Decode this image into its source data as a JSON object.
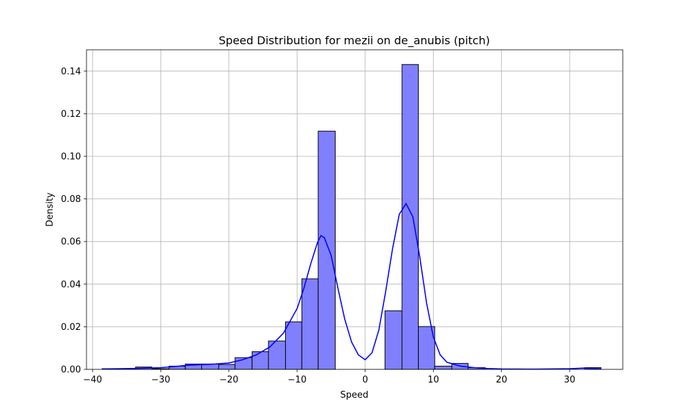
{
  "chart_data": {
    "type": "bar",
    "title": "Speed Distribution for mezii on de_anubis (pitch)",
    "xlabel": "Speed",
    "ylabel": "Density",
    "xlim": [
      -40.9,
      37.8
    ],
    "ylim": [
      0,
      0.15
    ],
    "grid": true,
    "x_ticks": [
      -40,
      -30,
      -20,
      -10,
      0,
      10,
      20,
      30
    ],
    "y_ticks": [
      0.0,
      0.02,
      0.04,
      0.06,
      0.08,
      0.1,
      0.12,
      0.14
    ],
    "x_tick_labels": [
      "−40",
      "−30",
      "−20",
      "−10",
      "0",
      "10",
      "20",
      "30"
    ],
    "y_tick_labels": [
      "0.00",
      "0.02",
      "0.04",
      "0.06",
      "0.08",
      "0.10",
      "0.12",
      "0.14"
    ],
    "bar_color": "#8080ff",
    "bar_edge_color": "#000000",
    "kde_color": "#0000ff",
    "bins": [
      {
        "x0": -38.6,
        "x1": -36.2,
        "value": 0.0003
      },
      {
        "x0": -36.2,
        "x1": -33.7,
        "value": 0.0003
      },
      {
        "x0": -33.7,
        "x1": -31.3,
        "value": 0.0011
      },
      {
        "x0": -31.3,
        "x1": -28.8,
        "value": 0.0003
      },
      {
        "x0": -28.8,
        "x1": -26.4,
        "value": 0.0015
      },
      {
        "x0": -26.4,
        "x1": -24.0,
        "value": 0.0025
      },
      {
        "x0": -24.0,
        "x1": -21.5,
        "value": 0.0025
      },
      {
        "x0": -21.5,
        "x1": -19.1,
        "value": 0.0023
      },
      {
        "x0": -19.1,
        "x1": -16.6,
        "value": 0.0055
      },
      {
        "x0": -16.6,
        "x1": -14.2,
        "value": 0.0083
      },
      {
        "x0": -14.2,
        "x1": -11.7,
        "value": 0.0133
      },
      {
        "x0": -11.7,
        "x1": -9.3,
        "value": 0.0223
      },
      {
        "x0": -9.3,
        "x1": -6.9,
        "value": 0.0425
      },
      {
        "x0": -6.9,
        "x1": -4.4,
        "value": 0.1118
      },
      {
        "x0": -4.4,
        "x1": -2.0,
        "value": 0.0
      },
      {
        "x0": -2.0,
        "x1": 0.5,
        "value": 0.0
      },
      {
        "x0": 0.5,
        "x1": 2.9,
        "value": 0.0
      },
      {
        "x0": 2.9,
        "x1": 5.4,
        "value": 0.0275
      },
      {
        "x0": 5.4,
        "x1": 7.8,
        "value": 0.1431
      },
      {
        "x0": 7.8,
        "x1": 10.2,
        "value": 0.0201
      },
      {
        "x0": 10.2,
        "x1": 12.7,
        "value": 0.0015
      },
      {
        "x0": 12.7,
        "x1": 15.1,
        "value": 0.0028
      },
      {
        "x0": 15.1,
        "x1": 17.6,
        "value": 0.0008
      },
      {
        "x0": 17.6,
        "x1": 20.0,
        "value": 0.0
      },
      {
        "x0": 20.0,
        "x1": 22.5,
        "value": 0.0
      },
      {
        "x0": 22.5,
        "x1": 24.9,
        "value": 0.0
      },
      {
        "x0": 24.9,
        "x1": 27.3,
        "value": 0.0
      },
      {
        "x0": 27.3,
        "x1": 29.8,
        "value": 0.0
      },
      {
        "x0": 29.8,
        "x1": 32.2,
        "value": 0.0
      },
      {
        "x0": 32.2,
        "x1": 34.6,
        "value": 0.0008
      }
    ],
    "kde": {
      "x": [
        -38.6,
        -36,
        -33,
        -30,
        -28,
        -26,
        -24,
        -22,
        -20,
        -18,
        -16,
        -14,
        -12,
        -10,
        -9,
        -8,
        -7,
        -6.5,
        -6,
        -5,
        -4,
        -3,
        -2,
        -1,
        0,
        1,
        2,
        3,
        4,
        5,
        6,
        7,
        8,
        9,
        10,
        11,
        12,
        14,
        16,
        18,
        20,
        25,
        30,
        32,
        34.6
      ],
      "y": [
        0.0002,
        0.0003,
        0.0005,
        0.0008,
        0.0013,
        0.0019,
        0.0022,
        0.0025,
        0.003,
        0.0045,
        0.0068,
        0.0105,
        0.017,
        0.0285,
        0.038,
        0.0495,
        0.0595,
        0.0628,
        0.0618,
        0.0535,
        0.038,
        0.0235,
        0.0128,
        0.0068,
        0.0045,
        0.0078,
        0.0185,
        0.0365,
        0.0565,
        0.0728,
        0.0778,
        0.0715,
        0.053,
        0.0312,
        0.0152,
        0.0068,
        0.0033,
        0.0015,
        0.0008,
        0.0004,
        0.0002,
        0.0001,
        0.0003,
        0.0006,
        0.0002
      ]
    }
  }
}
